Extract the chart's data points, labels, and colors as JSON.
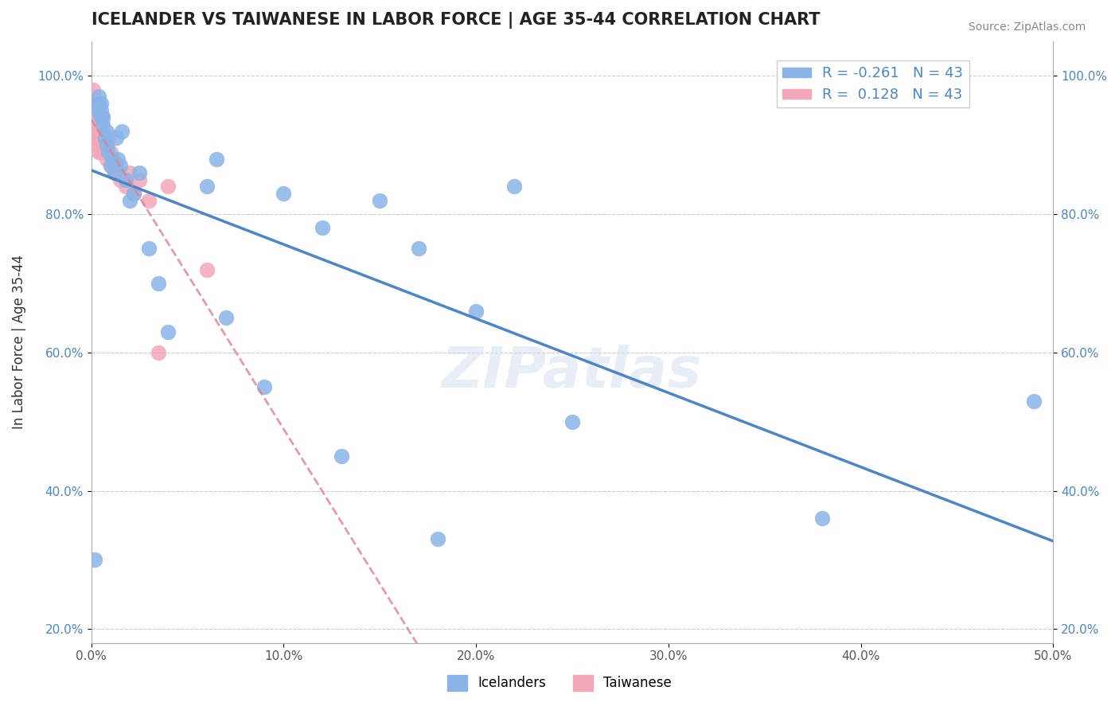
{
  "title": "ICELANDER VS TAIWANESE IN LABOR FORCE | AGE 35-44 CORRELATION CHART",
  "source_text": "Source: ZipAtlas.com",
  "xlabel": "",
  "ylabel": "In Labor Force | Age 35-44",
  "xlim": [
    0.0,
    0.5
  ],
  "ylim": [
    0.18,
    1.05
  ],
  "xticks": [
    0.0,
    0.1,
    0.2,
    0.3,
    0.4,
    0.5
  ],
  "xtick_labels": [
    "0.0%",
    "10.0%",
    "20.0%",
    "30.0%",
    "40.0%",
    "50.0%"
  ],
  "yticks": [
    0.2,
    0.4,
    0.6,
    0.8,
    1.0
  ],
  "ytick_labels": [
    "20.0%",
    "40.0%",
    "60.0%",
    "80.0%",
    "100.0%"
  ],
  "blue_R": -0.261,
  "blue_N": 43,
  "pink_R": 0.128,
  "pink_N": 43,
  "watermark": "ZIPatlas",
  "icelander_color": "#8ab4e8",
  "taiwanese_color": "#f4a7b9",
  "trend_blue_color": "#4a86c8",
  "trend_pink_color": "#e08090",
  "icelanders_x": [
    0.002,
    0.003,
    0.003,
    0.004,
    0.004,
    0.005,
    0.005,
    0.005,
    0.006,
    0.006,
    0.007,
    0.008,
    0.008,
    0.009,
    0.01,
    0.011,
    0.012,
    0.013,
    0.014,
    0.015,
    0.016,
    0.018,
    0.02,
    0.022,
    0.025,
    0.03,
    0.035,
    0.04,
    0.06,
    0.065,
    0.07,
    0.09,
    0.1,
    0.12,
    0.13,
    0.15,
    0.17,
    0.18,
    0.2,
    0.22,
    0.25,
    0.38,
    0.49
  ],
  "icelanders_y": [
    0.3,
    0.95,
    0.96,
    0.96,
    0.97,
    0.94,
    0.95,
    0.96,
    0.93,
    0.94,
    0.91,
    0.9,
    0.92,
    0.89,
    0.87,
    0.88,
    0.86,
    0.91,
    0.88,
    0.87,
    0.92,
    0.85,
    0.82,
    0.83,
    0.86,
    0.75,
    0.7,
    0.63,
    0.84,
    0.88,
    0.65,
    0.55,
    0.83,
    0.78,
    0.45,
    0.82,
    0.75,
    0.33,
    0.66,
    0.84,
    0.5,
    0.36,
    0.53
  ],
  "taiwanese_x": [
    0.001,
    0.001,
    0.001,
    0.002,
    0.002,
    0.002,
    0.002,
    0.002,
    0.003,
    0.003,
    0.003,
    0.003,
    0.003,
    0.003,
    0.004,
    0.004,
    0.004,
    0.004,
    0.005,
    0.005,
    0.005,
    0.006,
    0.006,
    0.006,
    0.007,
    0.007,
    0.008,
    0.008,
    0.009,
    0.01,
    0.01,
    0.011,
    0.012,
    0.013,
    0.015,
    0.018,
    0.02,
    0.022,
    0.025,
    0.03,
    0.035,
    0.04,
    0.06
  ],
  "taiwanese_y": [
    0.98,
    0.97,
    0.96,
    0.95,
    0.94,
    0.93,
    0.93,
    0.92,
    0.95,
    0.94,
    0.93,
    0.92,
    0.91,
    0.9,
    0.92,
    0.91,
    0.9,
    0.89,
    0.93,
    0.91,
    0.89,
    0.94,
    0.92,
    0.9,
    0.91,
    0.89,
    0.9,
    0.88,
    0.91,
    0.89,
    0.87,
    0.88,
    0.86,
    0.87,
    0.85,
    0.84,
    0.86,
    0.83,
    0.85,
    0.82,
    0.6,
    0.84,
    0.72
  ]
}
